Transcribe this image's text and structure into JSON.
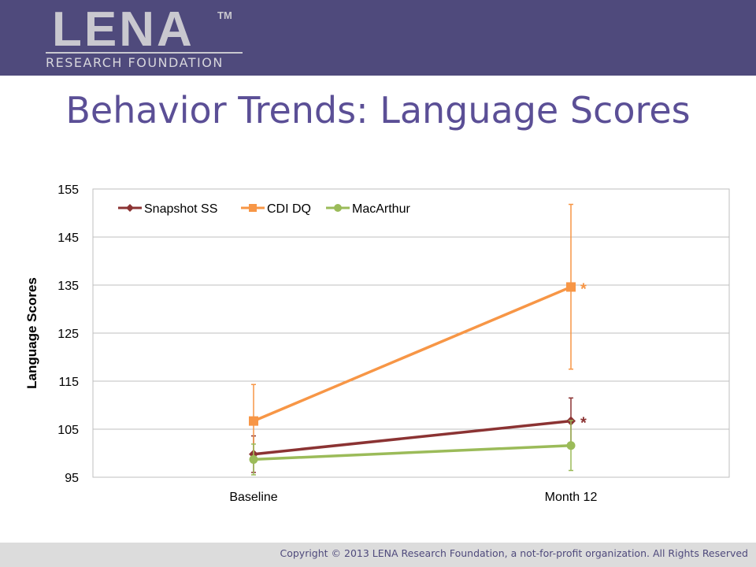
{
  "header": {
    "logo_main": "LENA",
    "logo_tm": "TM",
    "logo_sub": "RESEARCH FOUNDATION"
  },
  "slide_title": "Behavior Trends: Language Scores",
  "chart_data": {
    "type": "line",
    "title": "",
    "xlabel": "",
    "ylabel": "Language Scores",
    "categories": [
      "Baseline",
      "Month 12"
    ],
    "ylim": [
      95,
      155
    ],
    "yticks": [
      95,
      105,
      115,
      125,
      135,
      145,
      155
    ],
    "grid": true,
    "legend_position": "top-left",
    "series": [
      {
        "name": "Snapshot SS",
        "color": "#8b3333",
        "marker": "diamond",
        "values": [
          99.8,
          106.7
        ],
        "error": [
          [
            96.0,
            103.6
          ],
          [
            102.0,
            111.5
          ]
        ],
        "annotations": [
          "",
          "*"
        ]
      },
      {
        "name": "CDI DQ",
        "color": "#f79646",
        "marker": "square",
        "values": [
          106.7,
          134.6
        ],
        "error": [
          [
            99.0,
            114.3
          ],
          [
            117.5,
            151.8
          ]
        ],
        "annotations": [
          "",
          "*"
        ]
      },
      {
        "name": "MacArthur",
        "color": "#9bbb59",
        "marker": "circle",
        "values": [
          98.7,
          101.6
        ],
        "error": [
          [
            95.5,
            101.9
          ],
          [
            96.4,
            106.8
          ]
        ],
        "annotations": [
          "",
          ""
        ]
      }
    ]
  },
  "footer": {
    "copyright": "Copyright © 2013 LENA Research Foundation, a not-for-profit organization. All Rights Reserved"
  }
}
